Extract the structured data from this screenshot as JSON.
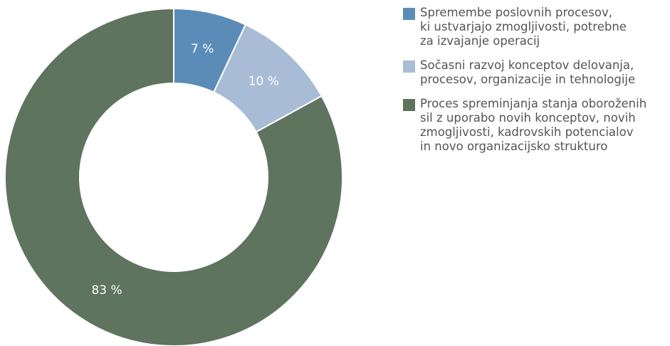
{
  "chart_data": {
    "type": "donut",
    "categories": [
      "Spremembe poslovnih procesov,\nki ustvarjajo zmogljivosti, potrebne\nza izvajanje operacij",
      "Sočasni razvoj konceptov delovanja,\nprocesov, organizacije in tehnologije",
      "Proces spreminjanja stanja oboroženih\nsil z uporabo novih konceptov, novih\nzmogljivosti, kadrovskih potencialov\nin novo organizacijsko strukturo"
    ],
    "values": [
      7,
      10,
      83
    ],
    "value_labels": [
      "7 %",
      "10 %",
      "83 %"
    ],
    "colors": [
      "#5b8cb8",
      "#a9bcd5",
      "#5f745f"
    ]
  }
}
